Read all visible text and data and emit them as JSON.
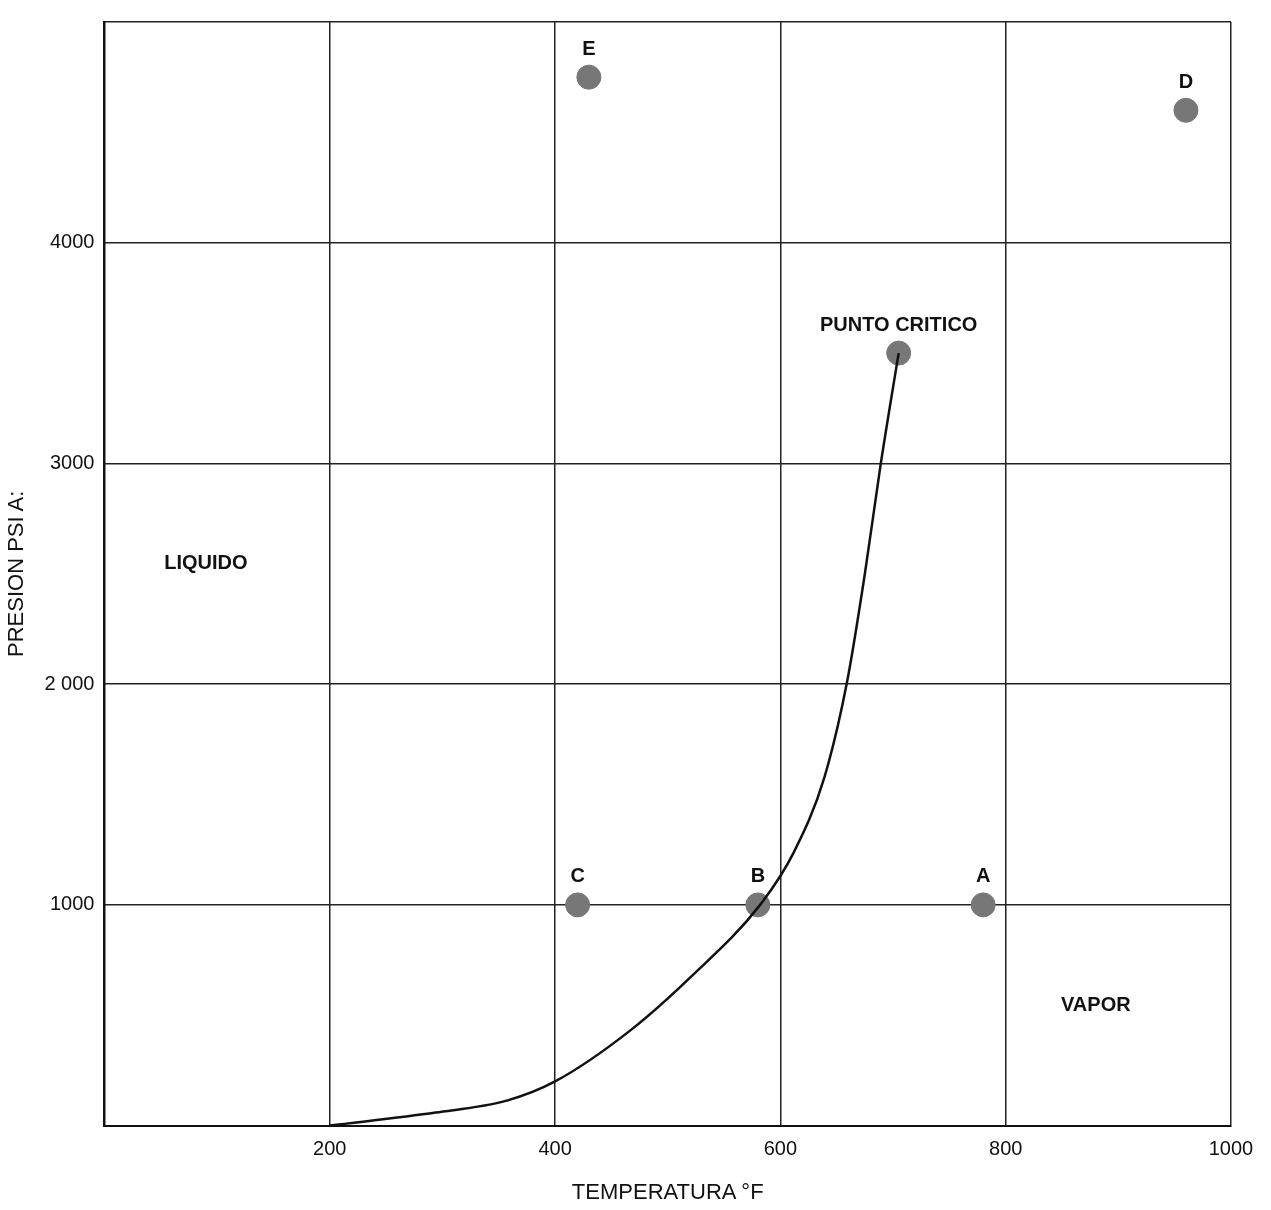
{
  "chart_data": {
    "type": "scatter",
    "xlabel": "TEMPERATURA °F",
    "ylabel": "PRESION PSI A:",
    "xlim": [
      0,
      1000
    ],
    "xticks": [
      {
        "value": 0,
        "label": null
      },
      200,
      400,
      600,
      800,
      1000
    ],
    "ylim": [
      0,
      5000
    ],
    "yticks": [
      {
        "value": 0,
        "label": null
      },
      1000,
      {
        "value": 2000,
        "label": "2 000"
      },
      3000,
      4000,
      {
        "value": 5000,
        "label": null
      }
    ],
    "series": [
      {
        "type": "line",
        "color": "#111111",
        "marker": "none",
        "x": [
          200,
          294,
          357,
          400,
          466,
          521,
          582,
          612,
          639,
          659,
          675,
          689,
          705
        ],
        "values": [
          0,
          59,
          113,
          200,
          428,
          676,
          1000,
          1239,
          1577,
          2005,
          2500,
          2995,
          3500
        ]
      },
      {
        "color": "#777777",
        "marker": "circle",
        "x": [
          780,
          580,
          420,
          960,
          430,
          705
        ],
        "values": [
          1000,
          1000,
          1000,
          4600,
          4750,
          3500
        ]
      }
    ],
    "annotations": [
      {
        "text": "A",
        "x": 780,
        "y": 1000
      },
      {
        "text": "B",
        "x": 580,
        "y": 1000
      },
      {
        "text": "C",
        "x": 420,
        "y": 1000
      },
      {
        "text": "D",
        "x": 960,
        "y": 4600
      },
      {
        "text": "E",
        "x": 430,
        "y": 4750
      },
      {
        "text": "PUNTO CRITICO",
        "x": 705,
        "y": 3500
      },
      "LIQUIDO",
      "VAPOR"
    ],
    "grid": true,
    "legend": false
  }
}
